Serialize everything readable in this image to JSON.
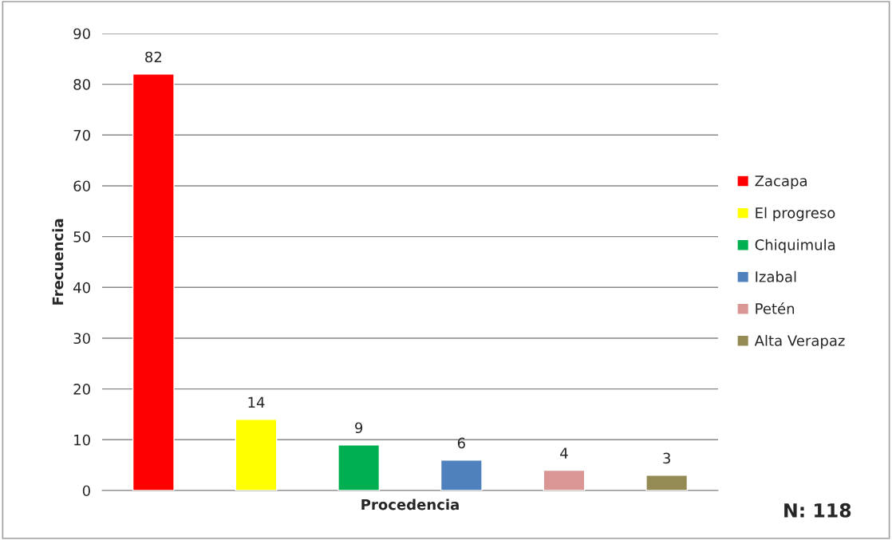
{
  "chart_data": {
    "type": "bar",
    "xlabel": "Procedencia",
    "ylabel": "Frecuencia",
    "categories": [
      null,
      null,
      null,
      null,
      null,
      null
    ],
    "series": [
      {
        "name": "Zacapa",
        "color": "#ff0000",
        "values": [
          82,
          null,
          null,
          null,
          null,
          null
        ]
      },
      {
        "name": "El progreso",
        "color": "#ffff00",
        "values": [
          null,
          14,
          null,
          null,
          null,
          null
        ]
      },
      {
        "name": "Chiquimula",
        "color": "#00b050",
        "values": [
          null,
          null,
          9,
          null,
          null,
          null
        ]
      },
      {
        "name": "Izabal",
        "color": "#4f81bd",
        "values": [
          null,
          null,
          null,
          6,
          null,
          null
        ]
      },
      {
        "name": "Petén",
        "color": "#d99694",
        "values": [
          null,
          null,
          null,
          null,
          4,
          null
        ]
      },
      {
        "name": "Alta Verapaz",
        "color": "#948a54",
        "values": [
          null,
          null,
          null,
          null,
          null,
          3
        ]
      }
    ],
    "ylim": [
      0,
      90
    ],
    "yticks": [
      0,
      10,
      20,
      30,
      40,
      50,
      60,
      70,
      80,
      90
    ],
    "grid": "y",
    "legend": "right",
    "data_labels": true,
    "annotations": [
      "N: 118"
    ]
  }
}
